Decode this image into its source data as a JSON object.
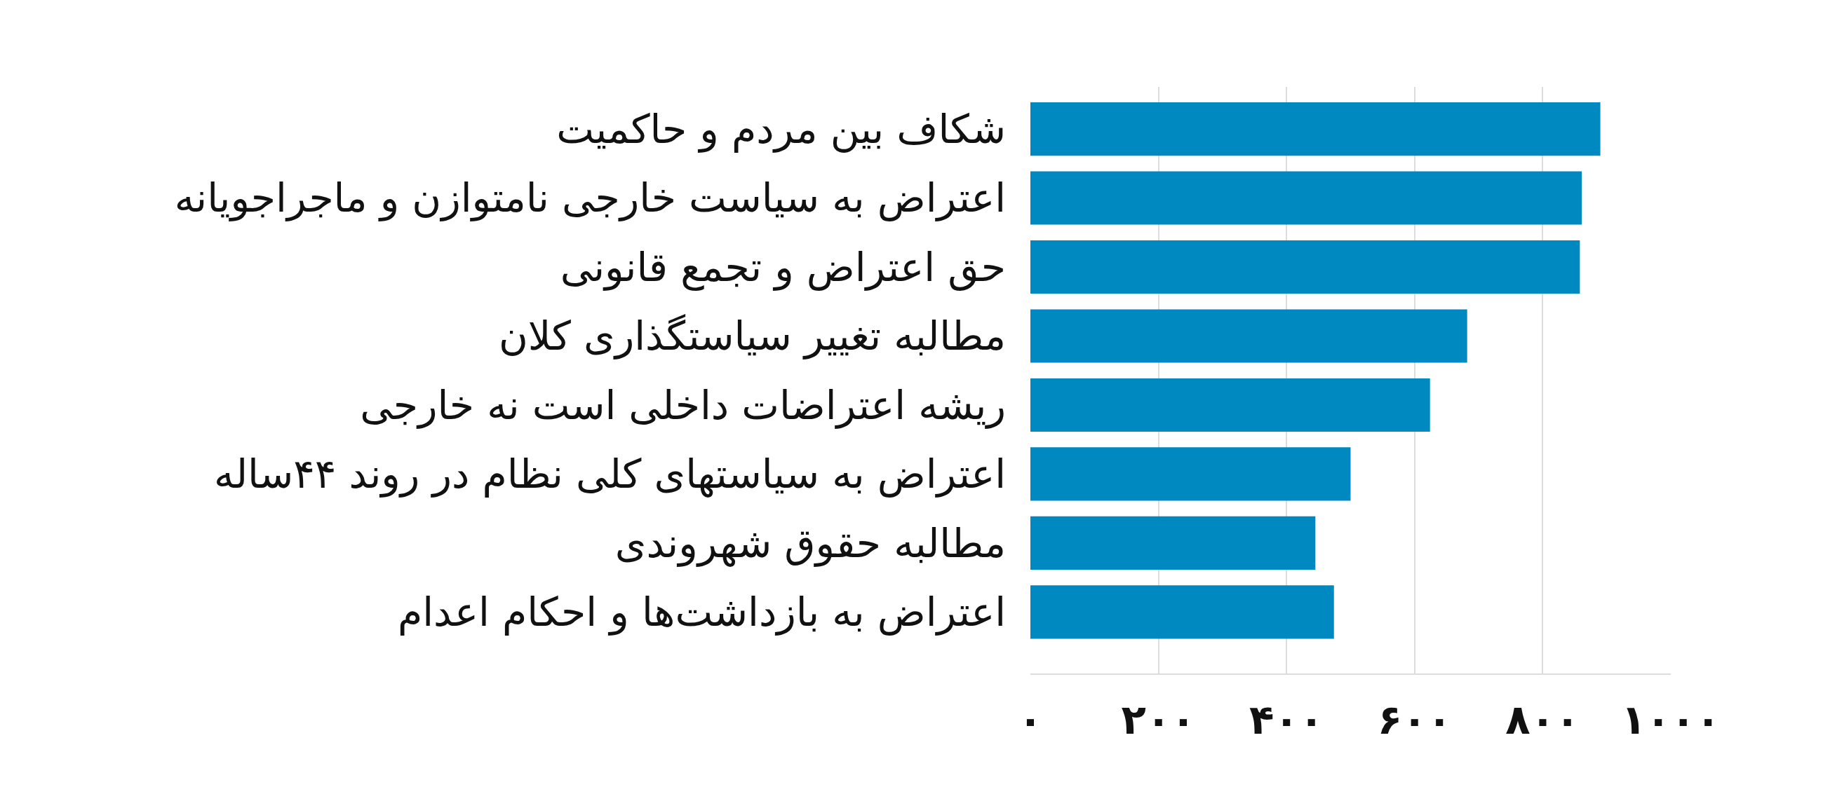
{
  "chart_data": {
    "type": "bar",
    "orientation": "horizontal",
    "categories": [
      "شکاف بین مردم و حاکمیت",
      "اعتراض به سیاست خارجی نامتوازن و ماجراجویانه",
      "حق اعتراض و تجمع قانونی",
      "مطالبه تغییر سیاستگذاری کلان",
      "ریشه اعتراضات داخلی است نه خارجی",
      "اعتراض به سیاستهای کلی نظام در روند ۴۴ساله",
      "مطالبه حقوق شهروندی",
      "اعتراض به بازداشت‌ها و احکام اعدام"
    ],
    "values": [
      890,
      861,
      858,
      682,
      624,
      500,
      445,
      474
    ],
    "color": "#0088c0",
    "xlim": [
      0,
      1000
    ],
    "xticks": [
      {
        "value": 0,
        "label": "۰"
      },
      {
        "value": 200,
        "label": "۲۰۰"
      },
      {
        "value": 400,
        "label": "۴۰۰"
      },
      {
        "value": 600,
        "label": "۶۰۰"
      },
      {
        "value": 800,
        "label": "۸۰۰"
      },
      {
        "value": 1000,
        "label": "۱۰۰۰"
      }
    ],
    "grid": "x"
  }
}
